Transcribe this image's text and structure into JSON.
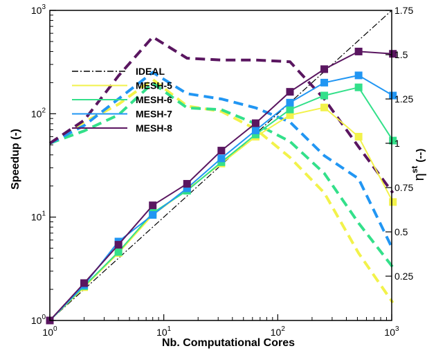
{
  "chart_data": {
    "type": "line",
    "xlabel": "Nb. Computational Cores",
    "ylabel": "Speedup (-)",
    "y2label_symbol": "η",
    "y2label_sup": "st",
    "y2label_unit": "(--)",
    "x_scale": "log",
    "y_scale": "log",
    "xlim": [
      1,
      1000
    ],
    "ylim": [
      1,
      1000
    ],
    "y2lim": [
      0.0,
      1.75
    ],
    "x_ticks": [
      {
        "value": 1,
        "mantissa": "10",
        "exp": "0"
      },
      {
        "value": 10,
        "mantissa": "10",
        "exp": "1"
      },
      {
        "value": 100,
        "mantissa": "10",
        "exp": "2"
      },
      {
        "value": 1000,
        "mantissa": "10",
        "exp": "3"
      }
    ],
    "y_ticks": [
      {
        "value": 1,
        "mantissa": "10",
        "exp": "0"
      },
      {
        "value": 10,
        "mantissa": "10",
        "exp": "1"
      },
      {
        "value": 100,
        "mantissa": "10",
        "exp": "2"
      },
      {
        "value": 1000,
        "mantissa": "10",
        "exp": "3"
      }
    ],
    "y2_ticks": [
      {
        "value": 0.25,
        "label": "0.25"
      },
      {
        "value": 0.5,
        "label": "0.5"
      },
      {
        "value": 0.75,
        "label": "0.75"
      },
      {
        "value": 1.0,
        "label": "1"
      },
      {
        "value": 1.25,
        "label": "1.25"
      },
      {
        "value": 1.5,
        "label": "1.5"
      },
      {
        "value": 1.75,
        "label": "1.75"
      }
    ],
    "legend_position": "upper-left",
    "legend": [
      {
        "name": "IDEAL",
        "color": "#000000",
        "style": "dashdot"
      },
      {
        "name": "MESH-5",
        "color": "#f2f24a",
        "style": "solid"
      },
      {
        "name": "MESH-6",
        "color": "#33e08a",
        "style": "solid"
      },
      {
        "name": "MESH-7",
        "color": "#2196f3",
        "style": "solid"
      },
      {
        "name": "MESH-8",
        "color": "#5a1660",
        "style": "solid"
      }
    ],
    "cores": [
      1,
      2,
      4,
      8,
      16,
      32,
      64,
      128,
      256,
      512,
      1024
    ],
    "speedup_series": [
      {
        "name": "MESH-5",
        "color": "#f2f24a",
        "values": [
          1,
          2.1,
          4.5,
          10.5,
          18.5,
          33,
          60,
          97,
          115,
          60,
          14
        ]
      },
      {
        "name": "MESH-6",
        "color": "#33e08a",
        "values": [
          1,
          2.15,
          4.6,
          11,
          18,
          34,
          63,
          110,
          150,
          180,
          55
        ]
      },
      {
        "name": "MESH-7",
        "color": "#2196f3",
        "values": [
          1,
          2.2,
          5.8,
          10.5,
          19,
          37,
          69,
          128,
          200,
          235,
          150
        ]
      },
      {
        "name": "MESH-8",
        "color": "#5a1660",
        "values": [
          1,
          2.3,
          5.4,
          13,
          21,
          44,
          81,
          163,
          270,
          400,
          380
        ]
      }
    ],
    "efficiency_series": [
      {
        "name": "MESH-5",
        "color": "#f2f24a",
        "values": [
          1.0,
          1.12,
          1.22,
          1.36,
          1.21,
          1.18,
          1.08,
          0.92,
          0.72,
          0.38,
          0.1
        ]
      },
      {
        "name": "MESH-6",
        "color": "#33e08a",
        "values": [
          1.0,
          1.07,
          1.16,
          1.34,
          1.2,
          1.19,
          1.11,
          1.01,
          0.83,
          0.55,
          0.3
        ]
      },
      {
        "name": "MESH-7",
        "color": "#2196f3",
        "values": [
          1.0,
          1.1,
          1.25,
          1.4,
          1.28,
          1.25,
          1.2,
          1.12,
          0.93,
          0.8,
          0.4
        ]
      },
      {
        "name": "MESH-8",
        "color": "#5a1660",
        "values": [
          1.0,
          1.13,
          1.38,
          1.6,
          1.48,
          1.47,
          1.47,
          1.46,
          1.25,
          0.98,
          0.72
        ]
      }
    ]
  }
}
